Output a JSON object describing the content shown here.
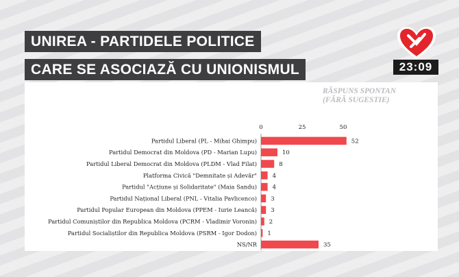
{
  "header": {
    "title_line1": "UNIREA - PARTIDELE POLITICE",
    "title_line2": "CARE SE ASOCIAZĂ CU UNIONISMUL",
    "clock": "23:09",
    "logo_icon": "channel-heart-logo"
  },
  "colors": {
    "bar": "#f0484d",
    "title_bg": "#3e3e40",
    "accent_red": "#e3262b"
  },
  "chart_data": {
    "type": "bar",
    "orientation": "horizontal",
    "subtitle_line1": "RĂSPUNS SPONTAN",
    "subtitle_line2": "(FĂRĂ SUGESTIE)",
    "xlim": [
      0,
      50
    ],
    "xticks": [
      0,
      25,
      50
    ],
    "grid": false,
    "categories": [
      "Partidul Liberal (PL - Mihai Ghimpu)",
      "Partidul Democrat din Moldova (PD - Marian Lupu)",
      "Partidul Liberal Democrat din Moldova (PLDM - Vlad Filat)",
      "Platforma Civică \"Demnitate și Adevăr\"",
      "Partidul \"Acțiune și Solidaritate\" (Maia Sandu)",
      "Partidul Național Liberal (PNL - Vitalia Pavlicenco)",
      "Partidul Popular European din Moldova (PPEM - Iurie Leancă)",
      "Partidul Comuniștilor din Republica Moldova (PCRM - Vladimir Voronin)",
      "Partidul Socialiștilor din Republica Moldova (PSRM - Igor Dodon)",
      "NS/NR"
    ],
    "values": [
      52,
      10,
      8,
      4,
      4,
      3,
      3,
      2,
      1,
      35
    ]
  }
}
